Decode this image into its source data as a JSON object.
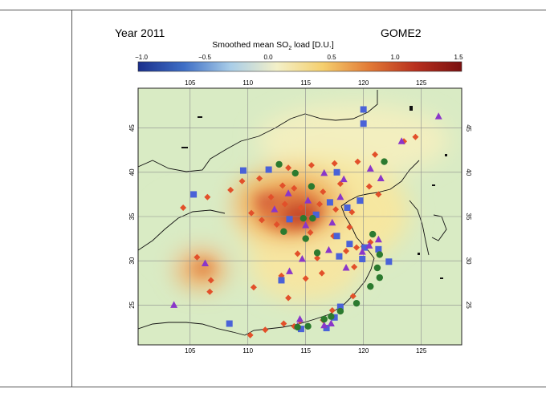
{
  "title_left": "Year 2011",
  "title_right": "GOME2",
  "colorbar": {
    "label_pre": "Smoothed mean SO",
    "label_sub": "2",
    "label_post": " load [D.U.]",
    "ticks": [
      "−1.0",
      "−0.5",
      "0.0",
      "0.5",
      "1.0",
      "1.5"
    ],
    "stops": [
      "#1a2f8c",
      "#3f6fc6",
      "#a9cde8",
      "#f3f0c8",
      "#f5cf6e",
      "#e27a36",
      "#b8301e",
      "#7a1010"
    ]
  },
  "map": {
    "lon_ticks": [
      "105",
      "110",
      "115",
      "120",
      "125"
    ],
    "lat_ticks": [
      "45",
      "40",
      "35",
      "30",
      "25"
    ],
    "lon_range": [
      100.5,
      128.5
    ],
    "lat_range": [
      20.5,
      49.5
    ],
    "colors": {
      "background": "#d9ebc4",
      "diamond": "#e2502a",
      "square": "#4a62d8",
      "triangle": "#8a36c9",
      "circle": "#2c7a2f"
    }
  }
}
